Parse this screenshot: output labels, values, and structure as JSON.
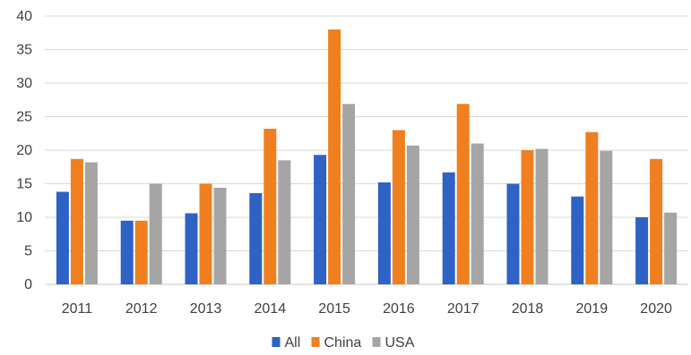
{
  "chart_data": {
    "type": "bar",
    "title": "",
    "xlabel": "",
    "ylabel": "",
    "ylim": [
      0,
      40
    ],
    "yticks": [
      "0",
      "5",
      "10",
      "15",
      "20",
      "25",
      "30",
      "35",
      "40"
    ],
    "grid": true,
    "legend_position": "bottom",
    "categories": [
      "2011",
      "2012",
      "2013",
      "2014",
      "2015",
      "2016",
      "2017",
      "2018",
      "2019",
      "2020"
    ],
    "series": [
      {
        "name": "All",
        "color": "#2e62c4",
        "values": [
          13.8,
          9.5,
          10.6,
          13.6,
          19.3,
          15.2,
          16.7,
          15.0,
          13.1,
          10.0
        ]
      },
      {
        "name": "China",
        "color": "#f07f1f",
        "values": [
          18.7,
          9.5,
          15.0,
          23.2,
          38.0,
          23.0,
          26.9,
          20.0,
          22.7,
          18.7
        ]
      },
      {
        "name": "USA",
        "color": "#a5a5a5",
        "values": [
          18.2,
          15.0,
          14.4,
          18.5,
          26.9,
          20.7,
          21.0,
          20.2,
          19.9,
          10.7
        ]
      }
    ]
  }
}
